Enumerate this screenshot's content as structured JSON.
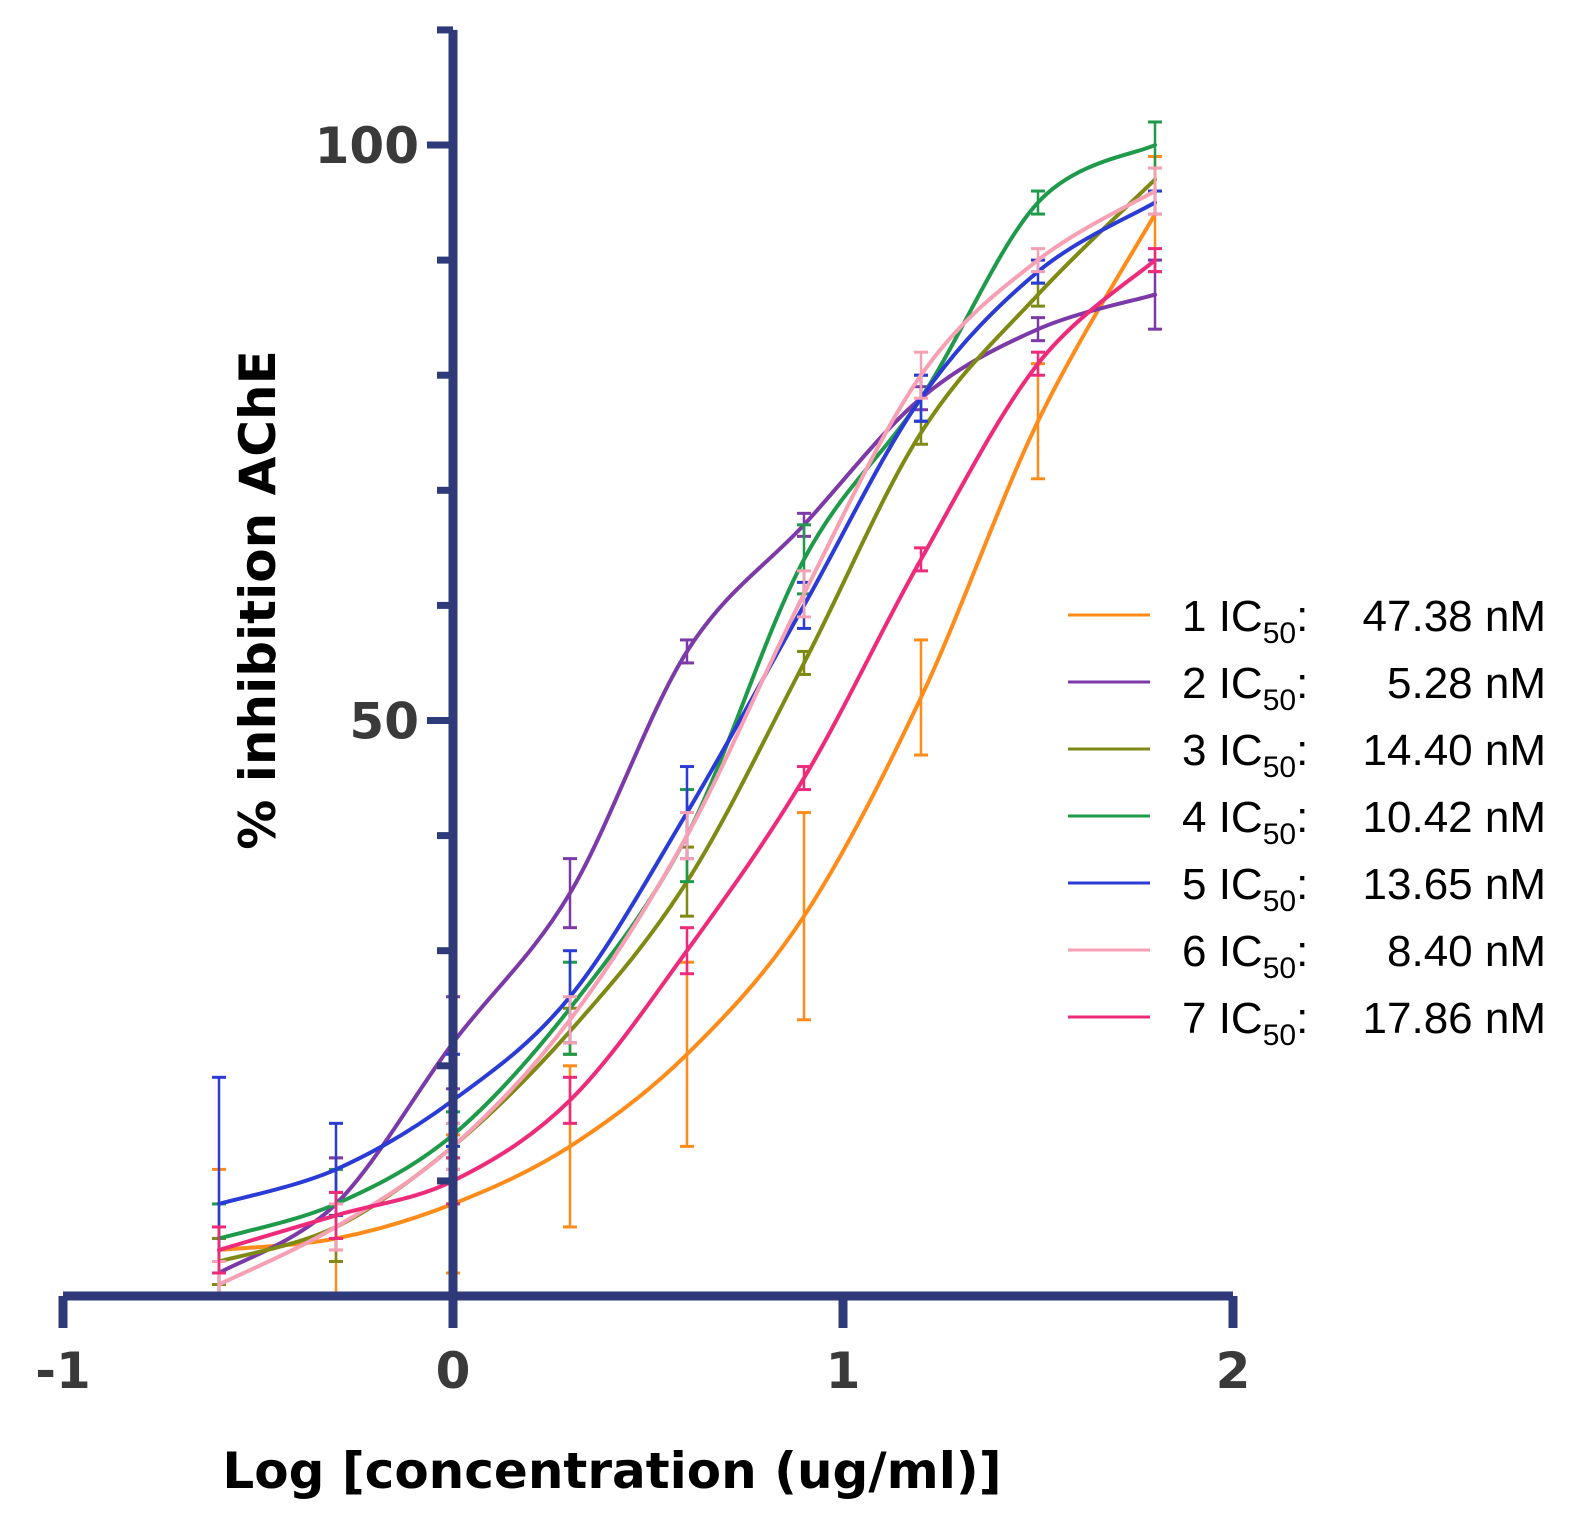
{
  "chart_data": {
    "type": "line",
    "title": "",
    "xlabel": "Log [concentration (ug/ml)]",
    "ylabel": "% inhibition AChE",
    "xlim": [
      -1,
      2
    ],
    "ylim": [
      0,
      110
    ],
    "xticks": [
      -1,
      0,
      1,
      2
    ],
    "yticks_labeled": [
      50,
      100
    ],
    "x_tick_labels": [
      "-1",
      "0",
      "1",
      "2"
    ],
    "y_tick_labels": [
      "50",
      "100"
    ],
    "axis_color": "#2e3a7a",
    "legend_position": "right",
    "x": [
      -0.6,
      -0.3,
      0.0,
      0.3,
      0.6,
      0.9,
      1.2,
      1.5,
      1.8
    ],
    "series": [
      {
        "name": "1",
        "ic50": "47.38 nM",
        "color": "#ff8c1a",
        "values": [
          4,
          5,
          8,
          13,
          21,
          33,
          52,
          76,
          94
        ],
        "err": [
          7,
          7,
          6,
          7,
          8,
          9,
          5,
          5,
          5
        ]
      },
      {
        "name": "2",
        "ic50": "5.28 nM",
        "color": "#7b3aa8",
        "values": [
          2,
          8,
          22,
          35,
          56,
          67,
          78,
          84,
          87
        ],
        "err": [
          3,
          4,
          4,
          3,
          1,
          1,
          1,
          1,
          3
        ]
      },
      {
        "name": "3",
        "ic50": "14.40 nM",
        "color": "#7f8a14",
        "values": [
          3,
          6,
          13,
          23,
          36,
          55,
          75,
          87,
          97
        ],
        "err": [
          2,
          3,
          2,
          2,
          3,
          1,
          1,
          1,
          1
        ]
      },
      {
        "name": "4",
        "ic50": "10.42 nM",
        "color": "#1f9a4a",
        "values": [
          5,
          8,
          14,
          25,
          40,
          64,
          78,
          95,
          100
        ],
        "err": [
          3,
          3,
          2,
          4,
          4,
          3,
          2,
          1,
          2
        ]
      },
      {
        "name": "5",
        "ic50": "13.65 nM",
        "color": "#2a3bd6",
        "values": [
          8,
          11,
          17,
          26,
          42,
          60,
          78,
          89,
          95
        ],
        "err": [
          11,
          4,
          4,
          4,
          4,
          2,
          2,
          1,
          1
        ]
      },
      {
        "name": "6",
        "ic50": "8.40 nM",
        "color": "#f7a0b4",
        "values": [
          1,
          6,
          13,
          24,
          40,
          61,
          80,
          90,
          96
        ],
        "err": [
          2,
          2,
          2,
          2,
          2,
          2,
          2,
          1,
          2
        ]
      },
      {
        "name": "7",
        "ic50": "17.86 nM",
        "color": "#ee2a7b",
        "values": [
          4,
          7,
          10,
          17,
          30,
          45,
          64,
          81,
          90
        ],
        "err": [
          2,
          2,
          2,
          2,
          2,
          1,
          1,
          1,
          1
        ]
      }
    ]
  }
}
